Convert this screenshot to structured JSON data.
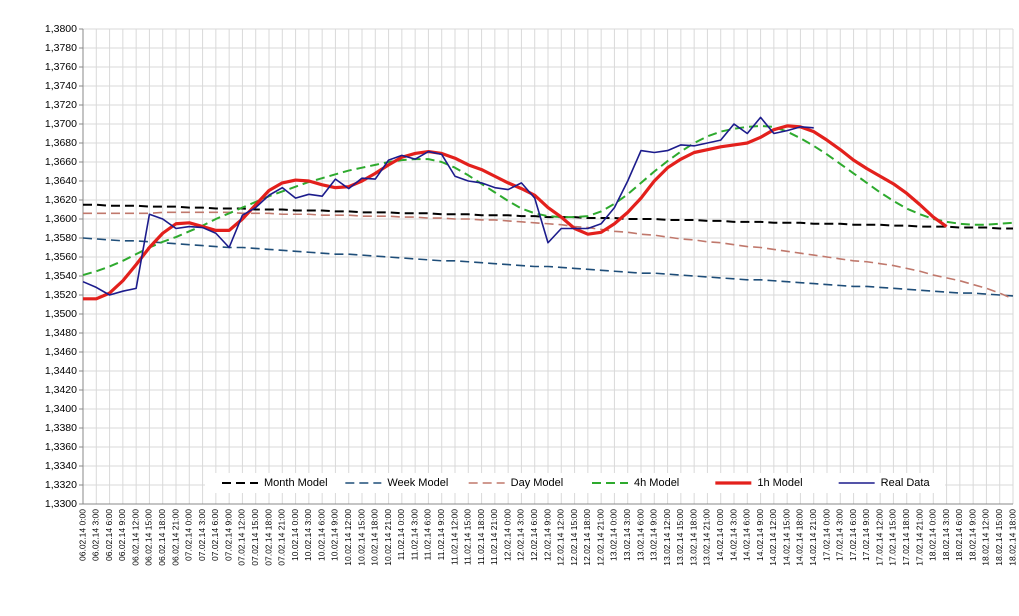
{
  "chart_data": {
    "type": "line",
    "categories": [
      "06.02.14 0:00",
      "06.02.14 3:00",
      "06.02.14 6:00",
      "06.02.14 9:00",
      "06.02.14 12:00",
      "06.02.14 15:00",
      "06.02.14 18:00",
      "06.02.14 21:00",
      "07.02.14 0:00",
      "07.02.14 3:00",
      "07.02.14 6:00",
      "07.02.14 9:00",
      "07.02.14 12:00",
      "07.02.14 15:00",
      "07.02.14 18:00",
      "07.02.14 21:00",
      "10.02.14 0:00",
      "10.02.14 3:00",
      "10.02.14 6:00",
      "10.02.14 9:00",
      "10.02.14 12:00",
      "10.02.14 15:00",
      "10.02.14 18:00",
      "10.02.14 21:00",
      "11.02.14 0:00",
      "11.02.14 3:00",
      "11.02.14 6:00",
      "11.02.14 9:00",
      "11.02.14 12:00",
      "11.02.14 15:00",
      "11.02.14 18:00",
      "11.02.14 21:00",
      "12.02.14 0:00",
      "12.02.14 3:00",
      "12.02.14 6:00",
      "12.02.14 9:00",
      "12.02.14 12:00",
      "12.02.14 15:00",
      "12.02.14 18:00",
      "12.02.14 21:00",
      "13.02.14 0:00",
      "13.02.14 3:00",
      "13.02.14 6:00",
      "13.02.14 9:00",
      "13.02.14 12:00",
      "13.02.14 15:00",
      "13.02.14 18:00",
      "13.02.14 21:00",
      "14.02.14 0:00",
      "14.02.14 3:00",
      "14.02.14 6:00",
      "14.02.14 9:00",
      "14.02.14 12:00",
      "14.02.14 15:00",
      "14.02.14 18:00",
      "14.02.14 21:00",
      "17.02.14 0:00",
      "17.02.14 3:00",
      "17.02.14 6:00",
      "17.02.14 9:00",
      "17.02.14 12:00",
      "17.02.14 15:00",
      "17.02.14 18:00",
      "17.02.14 21:00",
      "18.02.14 0:00",
      "18.02.14 3:00",
      "18.02.14 6:00",
      "18.02.14 9:00",
      "18.02.14 12:00",
      "18.02.14 15:00",
      "18.02.14 18:00"
    ],
    "series": [
      {
        "name": "Month Model",
        "color": "#000000",
        "dashed": true,
        "width": 2,
        "values": [
          1.3615,
          1.3615,
          1.3614,
          1.3614,
          1.3614,
          1.3613,
          1.3613,
          1.3613,
          1.3612,
          1.3612,
          1.3611,
          1.3611,
          1.3611,
          1.361,
          1.361,
          1.361,
          1.3609,
          1.3609,
          1.3609,
          1.3608,
          1.3608,
          1.3607,
          1.3607,
          1.3607,
          1.3606,
          1.3606,
          1.3606,
          1.3605,
          1.3605,
          1.3605,
          1.3604,
          1.3604,
          1.3604,
          1.3603,
          1.3603,
          1.3602,
          1.3602,
          1.3602,
          1.3601,
          1.3601,
          1.3601,
          1.36,
          1.36,
          1.36,
          1.3599,
          1.3599,
          1.3599,
          1.3598,
          1.3598,
          1.3597,
          1.3597,
          1.3597,
          1.3596,
          1.3596,
          1.3596,
          1.3595,
          1.3595,
          1.3595,
          1.3594,
          1.3594,
          1.3594,
          1.3593,
          1.3593,
          1.3592,
          1.3592,
          1.3592,
          1.3591,
          1.3591,
          1.3591,
          1.359,
          1.359
        ]
      },
      {
        "name": "Week Model",
        "color": "#1f4e79",
        "dashed": true,
        "width": 1.6,
        "values": [
          1.358,
          1.3579,
          1.3578,
          1.3577,
          1.3577,
          1.3576,
          1.3575,
          1.3574,
          1.3573,
          1.3572,
          1.3571,
          1.357,
          1.357,
          1.3569,
          1.3568,
          1.3567,
          1.3566,
          1.3565,
          1.3564,
          1.3563,
          1.3563,
          1.3562,
          1.3561,
          1.356,
          1.3559,
          1.3558,
          1.3557,
          1.3556,
          1.3556,
          1.3555,
          1.3554,
          1.3553,
          1.3552,
          1.3551,
          1.355,
          1.355,
          1.3549,
          1.3548,
          1.3547,
          1.3546,
          1.3545,
          1.3544,
          1.3543,
          1.3543,
          1.3542,
          1.3541,
          1.354,
          1.3539,
          1.3538,
          1.3537,
          1.3536,
          1.3536,
          1.3535,
          1.3534,
          1.3533,
          1.3532,
          1.3531,
          1.353,
          1.3529,
          1.3529,
          1.3528,
          1.3527,
          1.3526,
          1.3525,
          1.3524,
          1.3523,
          1.3522,
          1.3522,
          1.3521,
          1.352,
          1.3519
        ]
      },
      {
        "name": "Day Model",
        "color": "#c0786c",
        "dashed": true,
        "width": 1.6,
        "values": [
          1.3606,
          1.3606,
          1.3606,
          1.3606,
          1.3606,
          1.3606,
          1.3607,
          1.3607,
          1.3607,
          1.3607,
          1.3607,
          1.3607,
          1.3606,
          1.3606,
          1.3606,
          1.3605,
          1.3605,
          1.3605,
          1.3604,
          1.3604,
          1.3604,
          1.3603,
          1.3603,
          1.3603,
          1.3602,
          1.3602,
          1.3601,
          1.3601,
          1.36,
          1.36,
          1.3599,
          1.3599,
          1.3598,
          1.3597,
          1.3596,
          1.3595,
          1.3594,
          1.3592,
          1.3591,
          1.3589,
          1.3587,
          1.3586,
          1.3584,
          1.3583,
          1.3581,
          1.3579,
          1.3578,
          1.3576,
          1.3575,
          1.3573,
          1.3571,
          1.357,
          1.3568,
          1.3566,
          1.3564,
          1.3562,
          1.356,
          1.3558,
          1.3556,
          1.3555,
          1.3553,
          1.3551,
          1.3548,
          1.3545,
          1.3541,
          1.3538,
          1.3535,
          1.3531,
          1.3527,
          1.3522,
          1.3516
        ]
      },
      {
        "name": "4h Model",
        "color": "#2eaa2e",
        "dashed": true,
        "width": 2,
        "values": [
          1.3541,
          1.3545,
          1.355,
          1.3556,
          1.3563,
          1.357,
          1.3576,
          1.3581,
          1.3587,
          1.3593,
          1.36,
          1.3606,
          1.3612,
          1.3618,
          1.3624,
          1.3629,
          1.3634,
          1.3639,
          1.3643,
          1.3647,
          1.3651,
          1.3654,
          1.3657,
          1.366,
          1.3662,
          1.3663,
          1.3663,
          1.366,
          1.3654,
          1.3646,
          1.3637,
          1.3628,
          1.3619,
          1.3611,
          1.3606,
          1.3603,
          1.3602,
          1.3602,
          1.3603,
          1.3608,
          1.3616,
          1.3626,
          1.3638,
          1.365,
          1.3661,
          1.3671,
          1.368,
          1.3687,
          1.3692,
          1.3695,
          1.3697,
          1.3698,
          1.3697,
          1.3692,
          1.3685,
          1.3677,
          1.3668,
          1.3658,
          1.3648,
          1.3638,
          1.3628,
          1.3619,
          1.3611,
          1.3605,
          1.36,
          1.3597,
          1.3595,
          1.3594,
          1.3594,
          1.3595,
          1.3596
        ]
      },
      {
        "name": "1h Model",
        "color": "#e3201c",
        "dashed": false,
        "width": 3.2,
        "values": [
          1.3516,
          1.3516,
          1.3522,
          1.3535,
          1.3552,
          1.357,
          1.3585,
          1.3595,
          1.3596,
          1.3592,
          1.3588,
          1.3588,
          1.36,
          1.3615,
          1.363,
          1.3638,
          1.3641,
          1.364,
          1.3636,
          1.3633,
          1.3634,
          1.364,
          1.3648,
          1.3657,
          1.3665,
          1.3669,
          1.3671,
          1.3669,
          1.3664,
          1.3657,
          1.3652,
          1.3645,
          1.3638,
          1.3632,
          1.3625,
          1.3612,
          1.3602,
          1.359,
          1.3584,
          1.3586,
          1.3595,
          1.3607,
          1.3622,
          1.364,
          1.3654,
          1.3663,
          1.367,
          1.3673,
          1.3676,
          1.3678,
          1.368,
          1.3686,
          1.3694,
          1.3698,
          1.3697,
          1.3692,
          1.3683,
          1.3673,
          1.3662,
          1.3653,
          1.3645,
          1.3637,
          1.3627,
          1.3615,
          1.3602,
          1.3592,
          null,
          null,
          null,
          null,
          null
        ]
      },
      {
        "name": "Real Data",
        "color": "#1c1c8c",
        "dashed": false,
        "width": 1.6,
        "values": [
          1.3534,
          1.3528,
          1.352,
          1.3524,
          1.3527,
          1.3605,
          1.36,
          1.359,
          1.3592,
          1.3591,
          1.3585,
          1.357,
          1.3604,
          1.3612,
          1.3625,
          1.3633,
          1.3622,
          1.3626,
          1.3624,
          1.3642,
          1.3632,
          1.3643,
          1.3642,
          1.3662,
          1.3667,
          1.3663,
          1.3671,
          1.3668,
          1.3645,
          1.364,
          1.3638,
          1.3633,
          1.3631,
          1.3638,
          1.3622,
          1.3575,
          1.359,
          1.359,
          1.359,
          1.3595,
          1.3612,
          1.364,
          1.3672,
          1.367,
          1.3672,
          1.3678,
          1.3677,
          1.368,
          1.3683,
          1.37,
          1.369,
          1.3707,
          1.369,
          1.3693,
          1.3697,
          1.3696,
          null,
          null,
          null,
          null,
          null,
          null,
          null,
          null,
          null,
          null,
          null,
          null,
          null,
          null,
          null
        ]
      }
    ],
    "ylim": [
      1.33,
      1.38
    ],
    "yticks": [
      {
        "value": 1.33,
        "label": "1,3300"
      },
      {
        "value": 1.332,
        "label": "1,3320"
      },
      {
        "value": 1.334,
        "label": "1,3340"
      },
      {
        "value": 1.336,
        "label": "1,3360"
      },
      {
        "value": 1.338,
        "label": "1,3380"
      },
      {
        "value": 1.34,
        "label": "1,3400"
      },
      {
        "value": 1.342,
        "label": "1,3420"
      },
      {
        "value": 1.344,
        "label": "1,3440"
      },
      {
        "value": 1.346,
        "label": "1,3460"
      },
      {
        "value": 1.348,
        "label": "1,3480"
      },
      {
        "value": 1.35,
        "label": "1,3500"
      },
      {
        "value": 1.352,
        "label": "1,3520"
      },
      {
        "value": 1.354,
        "label": "1,3540"
      },
      {
        "value": 1.356,
        "label": "1,3560"
      },
      {
        "value": 1.358,
        "label": "1,3580"
      },
      {
        "value": 1.36,
        "label": "1,3600"
      },
      {
        "value": 1.362,
        "label": "1,3620"
      },
      {
        "value": 1.364,
        "label": "1,3640"
      },
      {
        "value": 1.366,
        "label": "1,3660"
      },
      {
        "value": 1.368,
        "label": "1,3680"
      },
      {
        "value": 1.37,
        "label": "1,3700"
      },
      {
        "value": 1.372,
        "label": "1,3720"
      },
      {
        "value": 1.374,
        "label": "1,3740"
      },
      {
        "value": 1.376,
        "label": "1,3760"
      },
      {
        "value": 1.378,
        "label": "1,3780"
      },
      {
        "value": 1.38,
        "label": "1,3800"
      }
    ],
    "grid": true,
    "legend": "bottom"
  }
}
